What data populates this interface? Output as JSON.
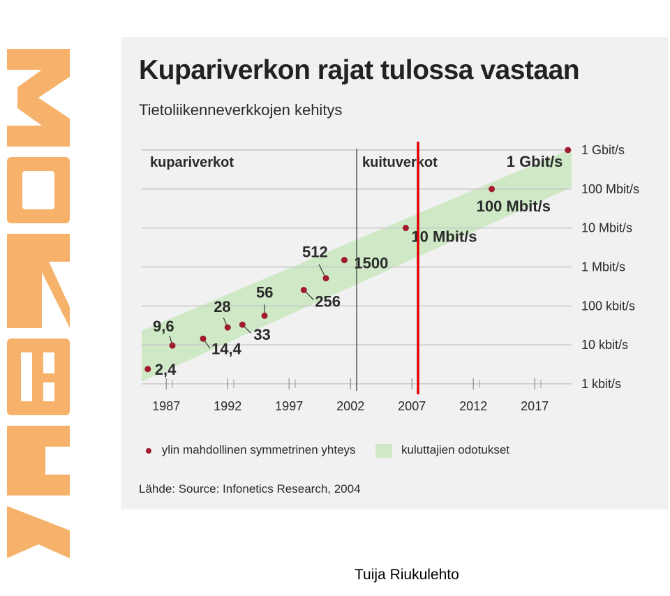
{
  "title": "Kupariverkon rajat tulossa vastaan",
  "subtitle": "Tietoliikenneverkkojen kehitys",
  "author": "Tuija Riukulehto",
  "source": "Lähde: Source: Infonetics Research, 2004",
  "legend": {
    "dot_label": "ylin mahdollinen symmetrinen yhteys",
    "band_label": "kuluttajien odotukset"
  },
  "logo": {
    "text": "VERKOX",
    "color": "#f6b26b"
  },
  "colors": {
    "dot": "#a01c2c",
    "band": "#cfe9c7",
    "marker_line": "#e00000",
    "grid": "#c8c8c8",
    "divider": "#555555"
  },
  "chart_data": {
    "type": "scatter",
    "y_scale": "log",
    "y_unit": "kbit/s",
    "xlim": [
      1985,
      2020
    ],
    "ylim": [
      1,
      1000000
    ],
    "x_ticks": [
      1987,
      1992,
      1997,
      2002,
      2007,
      2012,
      2017
    ],
    "y_ticks": [
      {
        "value": 1,
        "label": "1 kbit/s"
      },
      {
        "value": 10,
        "label": "10 kbit/s"
      },
      {
        "value": 100,
        "label": "100 kbit/s"
      },
      {
        "value": 1000,
        "label": "1 Mbit/s"
      },
      {
        "value": 10000,
        "label": "10 Mbit/s"
      },
      {
        "value": 100000,
        "label": "100 Mbit/s"
      },
      {
        "value": 1000000,
        "label": "1 Gbit/s"
      }
    ],
    "grid": true,
    "legend_position": "bottom",
    "regions": [
      {
        "label": "kupariverkot",
        "from": 1985,
        "to": 2002.5
      },
      {
        "label": "kuituverkot",
        "from": 2002.5,
        "to": 2020
      }
    ],
    "divider_x": 2002.5,
    "marker_x": 2007.5,
    "series": [
      {
        "name": "ylin mahdollinen symmetrinen yhteys",
        "points": [
          {
            "x": 1985.5,
            "y": 2.4,
            "label": "2,4"
          },
          {
            "x": 1987.5,
            "y": 9.6,
            "label": "9,6"
          },
          {
            "x": 1990,
            "y": 14.4,
            "label": "14,4"
          },
          {
            "x": 1992,
            "y": 28,
            "label": "28"
          },
          {
            "x": 1993.2,
            "y": 33,
            "label": "33"
          },
          {
            "x": 1995,
            "y": 56,
            "label": "56"
          },
          {
            "x": 1998.2,
            "y": 256,
            "label": "256"
          },
          {
            "x": 2000,
            "y": 512,
            "label": "512"
          },
          {
            "x": 2001.5,
            "y": 1500,
            "label": "1500"
          },
          {
            "x": 2006.5,
            "y": 10000,
            "label": "10 Mbit/s"
          },
          {
            "x": 2013.5,
            "y": 100000,
            "label": "100 Mbit/s"
          },
          {
            "x": 2019.7,
            "y": 1000000,
            "label": "1 Gbit/s"
          }
        ]
      }
    ],
    "band": {
      "name": "kuluttajien odotukset",
      "lower": [
        {
          "x": 1985,
          "y": 1.15
        },
        {
          "x": 2020,
          "y": 110000
        }
      ],
      "upper": [
        {
          "x": 1985,
          "y": 23
        },
        {
          "x": 2020,
          "y": 1100000
        }
      ]
    }
  }
}
